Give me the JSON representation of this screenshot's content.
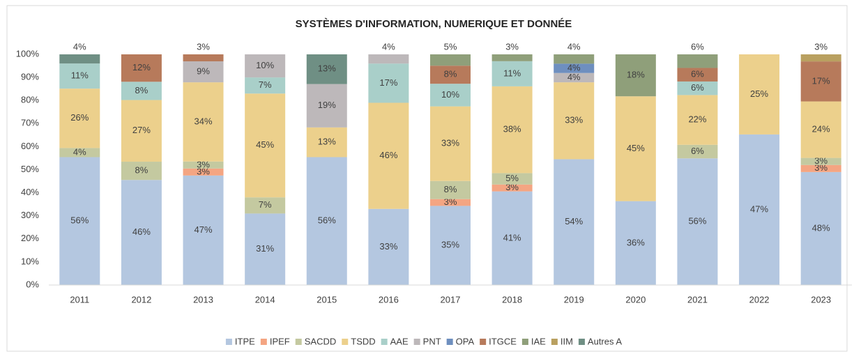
{
  "chart_data": {
    "type": "bar",
    "stacked": "percent",
    "title": "SYSTÈMES D'INFORMATION, NUMERIQUE ET DONNÉE",
    "categories": [
      "2011",
      "2012",
      "2013",
      "2014",
      "2015",
      "2016",
      "2017",
      "2018",
      "2019",
      "2020",
      "2021",
      "2022",
      "2023"
    ],
    "ylim": [
      0,
      100
    ],
    "yticks": [
      {
        "value": 0,
        "label": "0%"
      },
      {
        "value": 10,
        "label": "10%"
      },
      {
        "value": 20,
        "label": "20%"
      },
      {
        "value": 30,
        "label": "30%"
      },
      {
        "value": 40,
        "label": "40%"
      },
      {
        "value": 50,
        "label": "50%"
      },
      {
        "value": 60,
        "label": "60%"
      },
      {
        "value": 70,
        "label": "70%"
      },
      {
        "value": 80,
        "label": "80%"
      },
      {
        "value": 90,
        "label": "90%"
      },
      {
        "value": 100,
        "label": "100%"
      }
    ],
    "grid": false,
    "legend": "bottom",
    "series": [
      {
        "name": "ITPE",
        "color": "#b4c7e0",
        "values": [
          56,
          46,
          47,
          31,
          56,
          33,
          35,
          41,
          54,
          36,
          56,
          47,
          48
        ],
        "value_labels": [
          "56%",
          "46%",
          "47%",
          "31%",
          "56%",
          "33%",
          "35%",
          "41%",
          "54%",
          "36%",
          "56%",
          "47%",
          "48%"
        ]
      },
      {
        "name": "IPEF",
        "color": "#f4a582",
        "values": [
          null,
          null,
          3,
          null,
          null,
          null,
          3,
          3,
          null,
          null,
          null,
          null,
          3
        ],
        "value_labels": [
          null,
          null,
          "3%",
          null,
          null,
          null,
          "3%",
          "3%",
          null,
          null,
          null,
          null,
          "3%"
        ]
      },
      {
        "name": "SACDD",
        "color": "#c4c9a0",
        "values": [
          4,
          8,
          3,
          7,
          null,
          null,
          8,
          5,
          null,
          null,
          6,
          null,
          3
        ],
        "value_labels": [
          "4%",
          "8%",
          "3%",
          "7%",
          null,
          null,
          "8%",
          "5%",
          null,
          null,
          "6%",
          null,
          "3%"
        ]
      },
      {
        "name": "TSDD",
        "color": "#ecd08c",
        "values": [
          26,
          27,
          34,
          45,
          13,
          46,
          33,
          38,
          33,
          45,
          22,
          25,
          24
        ],
        "value_labels": [
          "26%",
          "27%",
          "34%",
          "45%",
          "13%",
          "46%",
          "33%",
          "38%",
          "33%",
          "45%",
          "22%",
          "25%",
          "24%"
        ]
      },
      {
        "name": "AAE",
        "color": "#a9cfc9",
        "values": [
          11,
          8,
          null,
          7,
          null,
          17,
          10,
          11,
          null,
          null,
          6,
          null,
          null
        ],
        "value_labels": [
          "11%",
          "8%",
          null,
          "7%",
          null,
          "17%",
          "10%",
          "11%",
          null,
          null,
          "6%",
          null,
          null
        ]
      },
      {
        "name": "PNT",
        "color": "#bdb8ba",
        "values": [
          null,
          null,
          9,
          10,
          19,
          4,
          null,
          null,
          4,
          null,
          null,
          null,
          null
        ],
        "value_labels": [
          null,
          null,
          "9%",
          "10%",
          "19%",
          "4%",
          null,
          null,
          "4%",
          null,
          null,
          null,
          null
        ]
      },
      {
        "name": "OPA",
        "color": "#6e8fbf",
        "values": [
          null,
          null,
          null,
          null,
          null,
          null,
          null,
          null,
          4,
          null,
          null,
          null,
          null
        ],
        "value_labels": [
          null,
          null,
          null,
          null,
          null,
          null,
          null,
          null,
          "4%",
          null,
          null,
          null,
          null
        ]
      },
      {
        "name": "ITGCE",
        "color": "#b77a5b",
        "values": [
          null,
          12,
          3,
          null,
          null,
          null,
          8,
          null,
          null,
          null,
          6,
          null,
          17
        ],
        "value_labels": [
          null,
          "12%",
          "3%",
          null,
          null,
          null,
          "8%",
          null,
          null,
          null,
          "6%",
          null,
          "17%"
        ]
      },
      {
        "name": "IAE",
        "color": "#8f9f7a",
        "values": [
          null,
          null,
          null,
          null,
          null,
          null,
          5,
          3,
          4,
          18,
          6,
          null,
          null
        ],
        "value_labels": [
          null,
          null,
          null,
          null,
          null,
          null,
          "5%",
          "3%",
          "4%",
          "18%",
          "6%",
          null,
          null
        ]
      },
      {
        "name": "IIM",
        "color": "#b9a060",
        "values": [
          null,
          null,
          null,
          null,
          null,
          null,
          null,
          null,
          null,
          null,
          null,
          null,
          3
        ],
        "value_labels": [
          null,
          null,
          null,
          null,
          null,
          null,
          null,
          null,
          null,
          null,
          null,
          null,
          "3%"
        ]
      },
      {
        "name": "Autres A",
        "color": "#6f8f84",
        "values": [
          4,
          null,
          null,
          null,
          13,
          null,
          null,
          null,
          null,
          null,
          null,
          null,
          null
        ],
        "value_labels": [
          "4%",
          null,
          null,
          null,
          "13%",
          null,
          null,
          null,
          null,
          null,
          null,
          null,
          null
        ]
      }
    ]
  }
}
